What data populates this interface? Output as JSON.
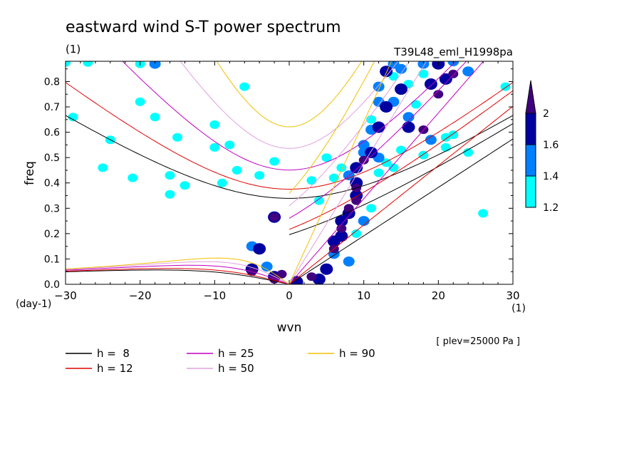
{
  "chart_data": {
    "type": "contour",
    "title": "eastward wind S-T power spectrum",
    "subtitle_left": "(1)",
    "subtitle_right": "T39L48_eml_H1998pa",
    "xlabel": "wvn",
    "ylabel": "freq",
    "x_unit": "(1)",
    "y_unit": "(day-1)",
    "xlim": [
      -30,
      30
    ],
    "ylim": [
      0,
      0.88
    ],
    "xticks": [
      -30,
      -20,
      -10,
      0,
      10,
      20,
      30
    ],
    "yticks": [
      0.0,
      0.1,
      0.2,
      0.3,
      0.4,
      0.5,
      0.6,
      0.7,
      0.8
    ],
    "annotation": "[ plev=25000 Pa ]",
    "colorbar": {
      "levels": [
        1.2,
        1.4,
        1.6,
        2
      ],
      "colors": [
        "#00ffff",
        "#0080ff",
        "#0000a0",
        "#400080"
      ]
    },
    "dispersion_curves": [
      {
        "label": "h =  8",
        "h": 8,
        "color": "#000000"
      },
      {
        "label": "h = 12",
        "h": 12,
        "color": "#e00000"
      },
      {
        "label": "h = 25",
        "h": 25,
        "color": "#c000c0"
      },
      {
        "label": "h = 50",
        "h": 50,
        "color": "#e0a0e0"
      },
      {
        "label": "h = 90",
        "h": 90,
        "color": "#f0c000"
      }
    ],
    "blobs": [
      {
        "x": -30,
        "y": 0.875,
        "v": 1.2
      },
      {
        "x": -27,
        "y": 0.875,
        "v": 1.2
      },
      {
        "x": -18,
        "y": 0.87,
        "v": 1.4
      },
      {
        "x": -20,
        "y": 0.87,
        "v": 1.2
      },
      {
        "x": -29,
        "y": 0.66,
        "v": 1.2
      },
      {
        "x": -20,
        "y": 0.72,
        "v": 1.2
      },
      {
        "x": -24,
        "y": 0.57,
        "v": 1.2
      },
      {
        "x": -18,
        "y": 0.66,
        "v": 1.2
      },
      {
        "x": -25,
        "y": 0.46,
        "v": 1.2
      },
      {
        "x": -15,
        "y": 0.58,
        "v": 1.2
      },
      {
        "x": -16,
        "y": 0.43,
        "v": 1.2
      },
      {
        "x": -14,
        "y": 0.39,
        "v": 1.2
      },
      {
        "x": -16,
        "y": 0.355,
        "v": 1.2
      },
      {
        "x": -6,
        "y": 0.78,
        "v": 1.2
      },
      {
        "x": -8,
        "y": 0.55,
        "v": 1.2
      },
      {
        "x": -10,
        "y": 0.63,
        "v": 1.2
      },
      {
        "x": -4,
        "y": 0.43,
        "v": 1.2
      },
      {
        "x": -7,
        "y": 0.45,
        "v": 1.2
      },
      {
        "x": -9,
        "y": 0.4,
        "v": 1.2
      },
      {
        "x": -21,
        "y": 0.42,
        "v": 1.2
      },
      {
        "x": -2,
        "y": 0.485,
        "v": 1.2
      },
      {
        "x": -10,
        "y": 0.54,
        "v": 1.2
      },
      {
        "x": -5,
        "y": 0.15,
        "v": 1.4
      },
      {
        "x": -4,
        "y": 0.14,
        "v": 1.6
      },
      {
        "x": -2,
        "y": 0.265,
        "v": 1.6
      },
      {
        "x": -2,
        "y": 0.265,
        "v": 2
      },
      {
        "x": -5,
        "y": 0.06,
        "v": 1.6
      },
      {
        "x": -5,
        "y": 0.05,
        "v": 2
      },
      {
        "x": -3,
        "y": 0.07,
        "v": 1.4
      },
      {
        "x": -2,
        "y": 0.03,
        "v": 1.6
      },
      {
        "x": -1,
        "y": 0.04,
        "v": 2
      },
      {
        "x": -2,
        "y": 0.02,
        "v": 2
      },
      {
        "x": 1,
        "y": 0.01,
        "v": 1.6
      },
      {
        "x": 3,
        "y": 0.03,
        "v": 2
      },
      {
        "x": 4,
        "y": 0.02,
        "v": 1.6
      },
      {
        "x": 5,
        "y": 0.06,
        "v": 1.6
      },
      {
        "x": 6,
        "y": 0.12,
        "v": 1.4
      },
      {
        "x": 6,
        "y": 0.17,
        "v": 1.6
      },
      {
        "x": 6,
        "y": 0.14,
        "v": 2
      },
      {
        "x": 7,
        "y": 0.19,
        "v": 1.6
      },
      {
        "x": 7,
        "y": 0.22,
        "v": 2
      },
      {
        "x": 7,
        "y": 0.25,
        "v": 1.6
      },
      {
        "x": 8,
        "y": 0.28,
        "v": 1.6
      },
      {
        "x": 8,
        "y": 0.3,
        "v": 2
      },
      {
        "x": 9,
        "y": 0.33,
        "v": 2
      },
      {
        "x": 9,
        "y": 0.35,
        "v": 1.6
      },
      {
        "x": 9,
        "y": 0.38,
        "v": 2
      },
      {
        "x": 9,
        "y": 0.4,
        "v": 1.6
      },
      {
        "x": 8,
        "y": 0.43,
        "v": 1.4
      },
      {
        "x": 9,
        "y": 0.46,
        "v": 1.6
      },
      {
        "x": 10,
        "y": 0.49,
        "v": 2
      },
      {
        "x": 11,
        "y": 0.52,
        "v": 1.6
      },
      {
        "x": 10,
        "y": 0.55,
        "v": 1.4
      },
      {
        "x": 11,
        "y": 0.61,
        "v": 1.4
      },
      {
        "x": 12,
        "y": 0.62,
        "v": 1.6
      },
      {
        "x": 11,
        "y": 0.65,
        "v": 1.2
      },
      {
        "x": 12,
        "y": 0.72,
        "v": 1.4
      },
      {
        "x": 13,
        "y": 0.7,
        "v": 1.6
      },
      {
        "x": 12,
        "y": 0.78,
        "v": 1.4
      },
      {
        "x": 14,
        "y": 0.82,
        "v": 1.2
      },
      {
        "x": 15,
        "y": 0.85,
        "v": 1.4
      },
      {
        "x": 16,
        "y": 0.79,
        "v": 1.2
      },
      {
        "x": 16,
        "y": 0.62,
        "v": 1.6
      },
      {
        "x": 16,
        "y": 0.66,
        "v": 1.4
      },
      {
        "x": 18,
        "y": 0.61,
        "v": 2
      },
      {
        "x": 19,
        "y": 0.57,
        "v": 1.4
      },
      {
        "x": 19,
        "y": 0.79,
        "v": 1.6
      },
      {
        "x": 20,
        "y": 0.75,
        "v": 2
      },
      {
        "x": 21,
        "y": 0.81,
        "v": 1.6
      },
      {
        "x": 22,
        "y": 0.83,
        "v": 2
      },
      {
        "x": 18,
        "y": 0.87,
        "v": 1.4
      },
      {
        "x": 20,
        "y": 0.87,
        "v": 1.6
      },
      {
        "x": 22,
        "y": 0.88,
        "v": 1.4
      },
      {
        "x": 24,
        "y": 0.84,
        "v": 1.4
      },
      {
        "x": 14,
        "y": 0.46,
        "v": 1.2
      },
      {
        "x": 15,
        "y": 0.53,
        "v": 1.2
      },
      {
        "x": 21,
        "y": 0.58,
        "v": 1.2
      },
      {
        "x": 21,
        "y": 0.54,
        "v": 1.2
      },
      {
        "x": 22,
        "y": 0.59,
        "v": 1.2
      },
      {
        "x": 18,
        "y": 0.51,
        "v": 1.2
      },
      {
        "x": 7,
        "y": 0.46,
        "v": 1.2
      },
      {
        "x": 6,
        "y": 0.42,
        "v": 1.2
      },
      {
        "x": 4,
        "y": 0.33,
        "v": 1.2
      },
      {
        "x": 10,
        "y": 0.52,
        "v": 1.4
      },
      {
        "x": 12,
        "y": 0.5,
        "v": 1.4
      },
      {
        "x": 13,
        "y": 0.48,
        "v": 1.2
      },
      {
        "x": 17,
        "y": 0.71,
        "v": 1.2
      },
      {
        "x": 18,
        "y": 0.83,
        "v": 1.2
      },
      {
        "x": 13,
        "y": 0.84,
        "v": 1.6
      },
      {
        "x": 14,
        "y": 0.87,
        "v": 1.4
      },
      {
        "x": 8,
        "y": 0.09,
        "v": 1.4
      },
      {
        "x": 9,
        "y": 0.2,
        "v": 1.2
      },
      {
        "x": 10,
        "y": 0.25,
        "v": 1.4
      },
      {
        "x": 11,
        "y": 0.3,
        "v": 1.2
      },
      {
        "x": 12,
        "y": 0.44,
        "v": 1.2
      },
      {
        "x": 3,
        "y": 0.41,
        "v": 1.2
      },
      {
        "x": 5,
        "y": 0.5,
        "v": 1.2
      },
      {
        "x": 24,
        "y": 0.52,
        "v": 1.2
      },
      {
        "x": 29,
        "y": 0.78,
        "v": 1.2
      },
      {
        "x": 26,
        "y": 0.28,
        "v": 1.2
      },
      {
        "x": 14,
        "y": 0.72,
        "v": 1.4
      },
      {
        "x": 15,
        "y": 0.77,
        "v": 1.6
      }
    ]
  }
}
